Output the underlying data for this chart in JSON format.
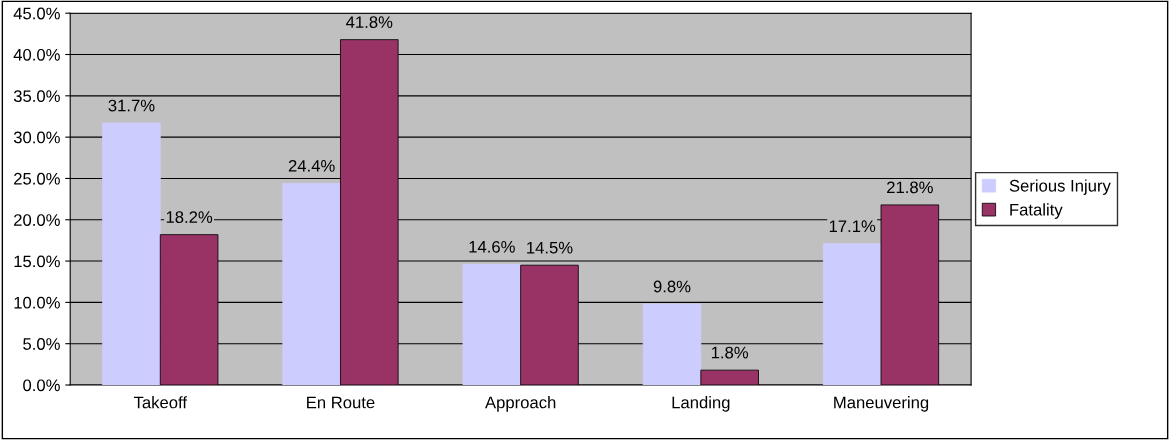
{
  "chart_data": {
    "type": "bar",
    "categories": [
      "Takeoff",
      "En Route",
      "Approach",
      "Landing",
      "Maneuvering"
    ],
    "series": [
      {
        "name": "Serious Injury",
        "color": "#ccccff",
        "values": [
          31.7,
          24.4,
          14.6,
          9.8,
          17.1
        ],
        "value_labels": [
          "31.7%",
          "24.4%",
          "14.6%",
          "9.8%",
          "17.1%"
        ]
      },
      {
        "name": "Fatality",
        "color": "#993366",
        "values": [
          18.2,
          41.8,
          14.5,
          1.8,
          21.8
        ],
        "value_labels": [
          "18.2%",
          "41.8%",
          "14.5%",
          "1.8%",
          "21.8%"
        ]
      }
    ],
    "ylim": [
      0,
      45
    ],
    "yticks": [
      {
        "value": 0,
        "label": "0.0%"
      },
      {
        "value": 5,
        "label": "5.0%"
      },
      {
        "value": 10,
        "label": "10.0%"
      },
      {
        "value": 15,
        "label": "15.0%"
      },
      {
        "value": 20,
        "label": "20.0%"
      },
      {
        "value": 25,
        "label": "25.0%"
      },
      {
        "value": 30,
        "label": "30.0%"
      },
      {
        "value": 35,
        "label": "35.0%"
      },
      {
        "value": 40,
        "label": "40.0%"
      },
      {
        "value": 45,
        "label": "45.0%"
      }
    ],
    "grid": "y",
    "legend": "right"
  }
}
